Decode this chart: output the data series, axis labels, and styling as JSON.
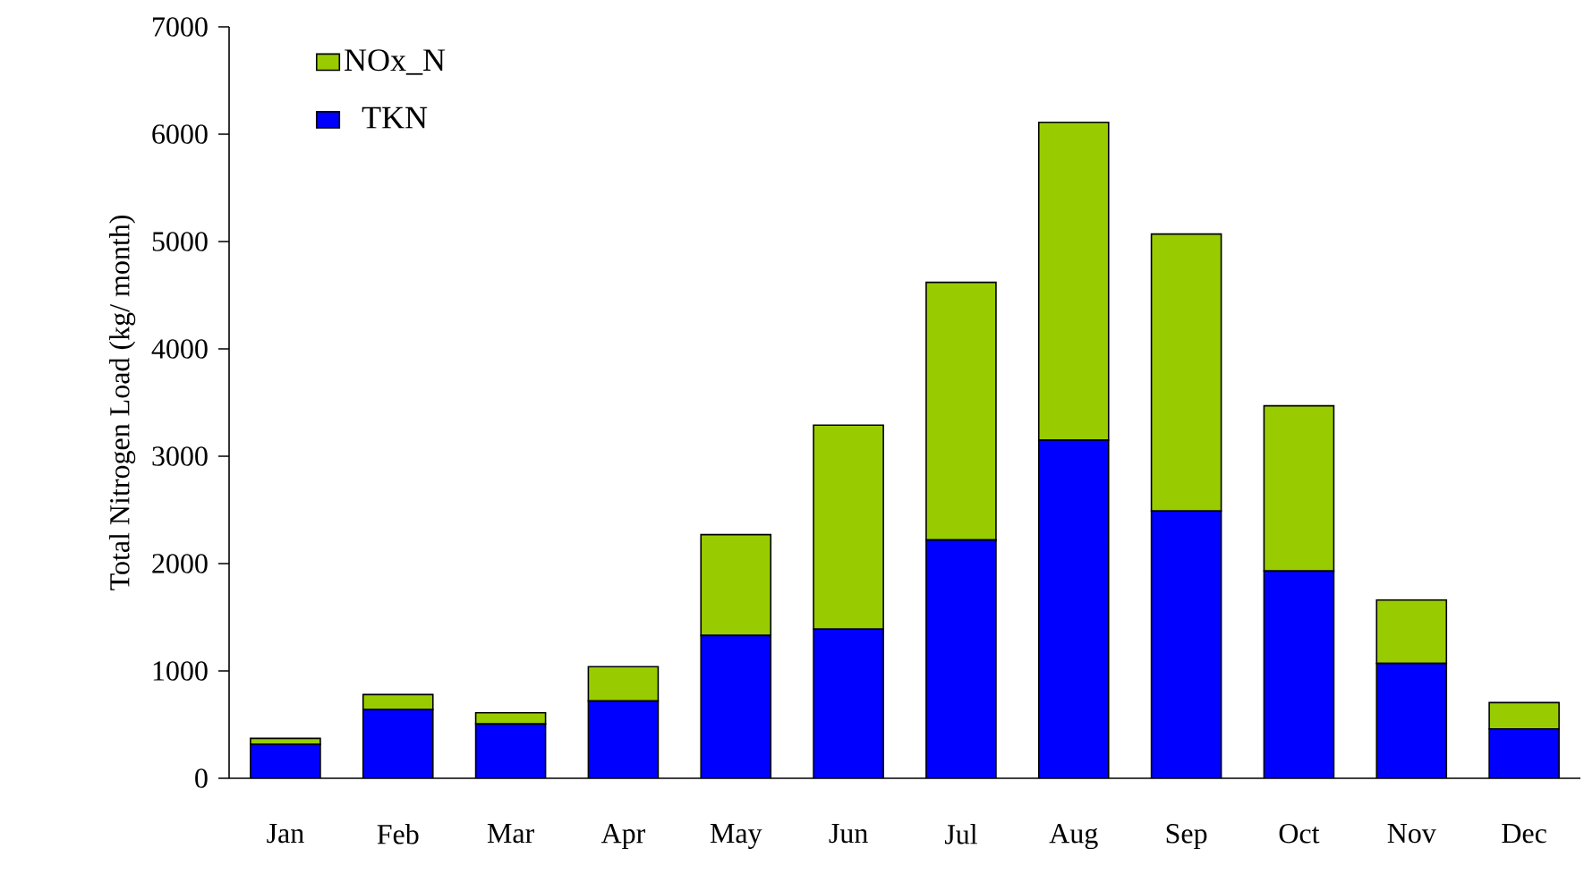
{
  "chart_data": {
    "type": "bar",
    "stacked": true,
    "ylabel": "Total Nitrogen Load (kg/ month)",
    "categories": [
      "Jan",
      "Feb",
      "Mar",
      "Apr",
      "May",
      "Jun",
      "Jul",
      "Aug",
      "Sep",
      "Oct",
      "Nov",
      "Dec"
    ],
    "series": [
      {
        "name": "TKN",
        "color": "#0000ff",
        "values": [
          317,
          640,
          505,
          720,
          1330,
          1390,
          2220,
          3150,
          2490,
          1930,
          1070,
          460
        ]
      },
      {
        "name": "NOx_N",
        "color": "#99cc00",
        "values": [
          55,
          140,
          105,
          320,
          940,
          1900,
          2400,
          2960,
          2580,
          1540,
          590,
          245
        ]
      }
    ],
    "ylim": [
      0,
      7000
    ],
    "yticks": [
      0,
      1000,
      2000,
      3000,
      4000,
      5000,
      6000,
      7000
    ],
    "legend": "top left"
  }
}
